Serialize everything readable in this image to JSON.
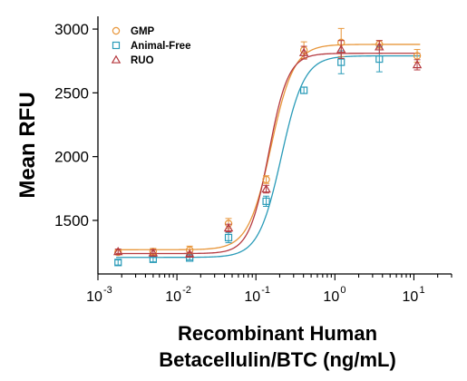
{
  "chart_data": {
    "type": "scatter",
    "xscale": "log",
    "x_tick_labels": [
      {
        "base": "10",
        "exp": "-3"
      },
      {
        "base": "10",
        "exp": "-2"
      },
      {
        "base": "10",
        "exp": "-1"
      },
      {
        "base": "10",
        "exp": "0"
      },
      {
        "base": "10",
        "exp": "1"
      }
    ],
    "x_ticks": [
      0.001,
      0.01,
      0.1,
      1,
      10
    ],
    "y_ticks": [
      1500,
      2000,
      2500,
      3000
    ],
    "xlim": [
      0.001,
      30
    ],
    "ylim": [
      1080,
      3100
    ],
    "xlabel_line1": "Recombinant Human",
    "xlabel_line2": "Betacellulin/BTC (ng/mL)",
    "ylabel": "Mean RFU",
    "legend_position": "top-left",
    "series": [
      {
        "name": "GMP",
        "marker": "circle",
        "color": "#e8963a",
        "x": [
          0.0018,
          0.005,
          0.0145,
          0.045,
          0.135,
          0.405,
          1.2,
          3.65,
          11
        ],
        "y": [
          1250,
          1255,
          1268,
          1475,
          1820,
          2835,
          2895,
          2880,
          2790
        ],
        "err": [
          20,
          25,
          30,
          40,
          30,
          65,
          110,
          30,
          50
        ],
        "curve": {
          "bottom": 1270,
          "top": 2880,
          "ec50": 0.155,
          "hill": 3.0
        }
      },
      {
        "name": "Animal-Free",
        "marker": "square",
        "color": "#2a9bb8",
        "x": [
          0.0018,
          0.005,
          0.0145,
          0.045,
          0.135,
          0.405,
          1.2,
          3.65
        ],
        "y": [
          1170,
          1195,
          1205,
          1365,
          1650,
          2520,
          2740,
          2765
        ],
        "err": [
          20,
          20,
          15,
          40,
          40,
          25,
          90,
          100
        ],
        "curve": {
          "bottom": 1210,
          "top": 2790,
          "ec50": 0.21,
          "hill": 3.0
        }
      },
      {
        "name": "RUO",
        "marker": "triangle",
        "color": "#b5393f",
        "x": [
          0.0018,
          0.005,
          0.0145,
          0.045,
          0.135,
          0.405,
          1.2,
          3.65,
          11
        ],
        "y": [
          1255,
          1245,
          1235,
          1440,
          1745,
          2815,
          2840,
          2860,
          2720
        ],
        "err": [
          20,
          25,
          15,
          30,
          30,
          50,
          70,
          50,
          40
        ],
        "curve": {
          "bottom": 1240,
          "top": 2810,
          "ec50": 0.145,
          "hill": 3.5
        }
      }
    ]
  }
}
